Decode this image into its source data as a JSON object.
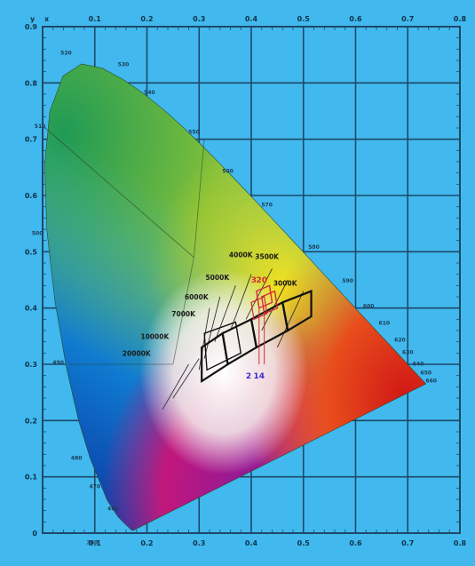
{
  "chart_data": {
    "type": "chromaticity-diagram",
    "title": "",
    "xlabel": "",
    "ylabel": "",
    "axis_corner_labels": {
      "x": "x",
      "y": "y"
    },
    "xlim": [
      0,
      0.8
    ],
    "ylim": [
      0,
      0.9
    ],
    "x_ticks": [
      "0",
      "0.1",
      "0.2",
      "0.3",
      "0.4",
      "0.5",
      "0.6",
      "0.7",
      "0.8"
    ],
    "y_ticks": [
      "0",
      "0.1",
      "0.2",
      "0.3",
      "0.4",
      "0.5",
      "0.6",
      "0.7",
      "0.8",
      "0.9"
    ],
    "grid": true,
    "colors": {
      "background": "#41b9ee",
      "grid": "#1d4868",
      "planckian_box": "#111111",
      "bins": "#d42a3a",
      "bin_labels": "#3a2fd0"
    },
    "locus": [
      [
        0.1741,
        0.005
      ],
      [
        0.174,
        0.005
      ],
      [
        0.1738,
        0.0049
      ],
      [
        0.1733,
        0.0048
      ],
      [
        0.1726,
        0.0048
      ],
      [
        0.1714,
        0.0051
      ],
      [
        0.1689,
        0.0069
      ],
      [
        0.1644,
        0.0109
      ],
      [
        0.1566,
        0.0177
      ],
      [
        0.144,
        0.0297
      ],
      [
        0.1241,
        0.0578
      ],
      [
        0.0913,
        0.1327
      ],
      [
        0.0687,
        0.2007
      ],
      [
        0.0454,
        0.295
      ],
      [
        0.0235,
        0.4127
      ],
      [
        0.0082,
        0.5384
      ],
      [
        0.0039,
        0.6548
      ],
      [
        0.0139,
        0.7502
      ],
      [
        0.0389,
        0.812
      ],
      [
        0.0743,
        0.8338
      ],
      [
        0.1142,
        0.8262
      ],
      [
        0.1547,
        0.8059
      ],
      [
        0.1929,
        0.7816
      ],
      [
        0.2296,
        0.7543
      ],
      [
        0.2658,
        0.7243
      ],
      [
        0.3016,
        0.6923
      ],
      [
        0.3373,
        0.6589
      ],
      [
        0.3731,
        0.6245
      ],
      [
        0.4087,
        0.5896
      ],
      [
        0.4441,
        0.5547
      ],
      [
        0.4788,
        0.5202
      ],
      [
        0.5125,
        0.4866
      ],
      [
        0.5448,
        0.4544
      ],
      [
        0.5752,
        0.4242
      ],
      [
        0.6029,
        0.3965
      ],
      [
        0.627,
        0.3725
      ],
      [
        0.6482,
        0.3514
      ],
      [
        0.6658,
        0.334
      ],
      [
        0.6801,
        0.3197
      ],
      [
        0.6915,
        0.3083
      ],
      [
        0.7006,
        0.2993
      ],
      [
        0.7079,
        0.292
      ],
      [
        0.714,
        0.2859
      ],
      [
        0.719,
        0.2809
      ],
      [
        0.723,
        0.277
      ],
      [
        0.726,
        0.274
      ],
      [
        0.7283,
        0.2717
      ],
      [
        0.73,
        0.27
      ],
      [
        0.7347,
        0.2653
      ]
    ],
    "wavelength_labels": [
      {
        "text": "380",
        "x": 0.095,
        "y": -0.02
      },
      {
        "text": "460",
        "x": 0.135,
        "y": 0.04
      },
      {
        "text": "470",
        "x": 0.1,
        "y": 0.08
      },
      {
        "text": "480",
        "x": 0.065,
        "y": 0.13
      },
      {
        "text": "490",
        "x": 0.03,
        "y": 0.3
      },
      {
        "text": "500",
        "x": -0.01,
        "y": 0.53
      },
      {
        "text": "510",
        "x": -0.005,
        "y": 0.72
      },
      {
        "text": "520",
        "x": 0.045,
        "y": 0.85
      },
      {
        "text": "530",
        "x": 0.155,
        "y": 0.83
      },
      {
        "text": "540",
        "x": 0.205,
        "y": 0.78
      },
      {
        "text": "550",
        "x": 0.29,
        "y": 0.71
      },
      {
        "text": "560",
        "x": 0.355,
        "y": 0.64
      },
      {
        "text": "570",
        "x": 0.43,
        "y": 0.58
      },
      {
        "text": "580",
        "x": 0.52,
        "y": 0.505
      },
      {
        "text": "590",
        "x": 0.585,
        "y": 0.445
      },
      {
        "text": "600",
        "x": 0.625,
        "y": 0.4
      },
      {
        "text": "610",
        "x": 0.655,
        "y": 0.37
      },
      {
        "text": "620",
        "x": 0.685,
        "y": 0.34
      },
      {
        "text": "630",
        "x": 0.7,
        "y": 0.318
      },
      {
        "text": "640",
        "x": 0.72,
        "y": 0.298
      },
      {
        "text": "650",
        "x": 0.735,
        "y": 0.282
      },
      {
        "text": "660",
        "x": 0.745,
        "y": 0.268
      }
    ],
    "cct_labels": [
      {
        "text": "4000K",
        "x": 0.38,
        "y": 0.49
      },
      {
        "text": "5000K",
        "x": 0.335,
        "y": 0.45
      },
      {
        "text": "6000K",
        "x": 0.295,
        "y": 0.415
      },
      {
        "text": "7000K",
        "x": 0.27,
        "y": 0.385
      },
      {
        "text": "10000K",
        "x": 0.215,
        "y": 0.345
      },
      {
        "text": "20000K",
        "x": 0.18,
        "y": 0.315
      },
      {
        "text": "3500K",
        "x": 0.43,
        "y": 0.487
      },
      {
        "text": "3000K",
        "x": 0.465,
        "y": 0.44
      }
    ],
    "bin_labels": [
      {
        "text": "3",
        "x": 0.405,
        "y": 0.445
      },
      {
        "text": "20",
        "x": 0.42,
        "y": 0.445
      },
      {
        "text": "2",
        "x": 0.395,
        "y": 0.275
      },
      {
        "text": "14",
        "x": 0.415,
        "y": 0.275
      }
    ]
  }
}
